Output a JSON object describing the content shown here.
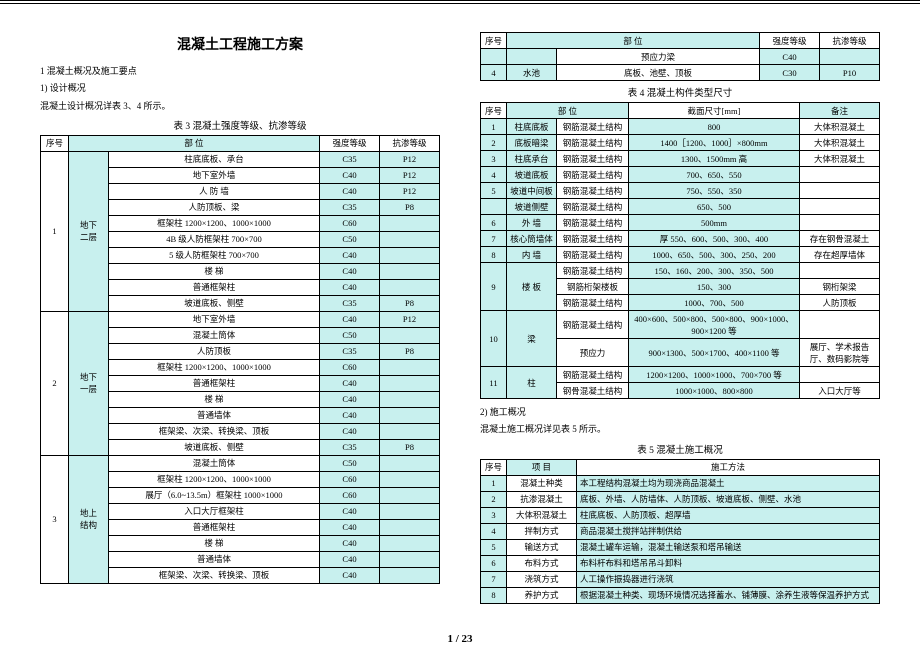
{
  "page_number": "1 / 23",
  "colors": {
    "highlight": "#c8f0ee",
    "border": "#000000",
    "bg": "#ffffff"
  },
  "title": "混凝土工程施工方案",
  "intro": {
    "l1": "1  混凝土概况及施工要点",
    "l2": "1)  设计概况",
    "l3": "混凝土设计概况详表 3、4 所示。"
  },
  "t3": {
    "caption": "表 3  混凝土强度等级、抗渗等级",
    "headers": {
      "idx": "序号",
      "part": "部  位",
      "strength": "强度等级",
      "perm": "抗渗等级"
    },
    "groups": [
      {
        "idx": "1",
        "label": "地下\n二层",
        "rows": [
          {
            "name": "柱底底板、承台",
            "s": "C35",
            "p": "P12"
          },
          {
            "name": "地下室外墙",
            "s": "C40",
            "p": "P12"
          },
          {
            "name": "人  防  墙",
            "s": "C40",
            "p": "P12"
          },
          {
            "name": "人防顶板、梁",
            "s": "C35",
            "p": "P8"
          },
          {
            "name": "框架柱 1200×1200、1000×1000",
            "s": "C60",
            "p": ""
          },
          {
            "name": "4B 级人防框架柱 700×700",
            "s": "C50",
            "p": ""
          },
          {
            "name": "5 级人防框架柱 700×700",
            "s": "C40",
            "p": ""
          },
          {
            "name": "楼    梯",
            "s": "C40",
            "p": ""
          },
          {
            "name": "普通框架柱",
            "s": "C40",
            "p": ""
          },
          {
            "name": "坡道底板、侧壁",
            "s": "C35",
            "p": "P8"
          }
        ]
      },
      {
        "idx": "2",
        "label": "地下\n一层",
        "rows": [
          {
            "name": "地下室外墙",
            "s": "C40",
            "p": "P12"
          },
          {
            "name": "混凝土筒体",
            "s": "C50",
            "p": ""
          },
          {
            "name": "人防顶板",
            "s": "C35",
            "p": "P8"
          },
          {
            "name": "框架柱 1200×1200、1000×1000",
            "s": "C60",
            "p": ""
          },
          {
            "name": "普通框架柱",
            "s": "C40",
            "p": ""
          },
          {
            "name": "楼    梯",
            "s": "C40",
            "p": ""
          },
          {
            "name": "普通墙体",
            "s": "C40",
            "p": ""
          },
          {
            "name": "框架梁、次梁、转换梁、顶板",
            "s": "C40",
            "p": ""
          },
          {
            "name": "坡道底板、侧壁",
            "s": "C35",
            "p": "P8"
          }
        ]
      },
      {
        "idx": "3",
        "label": "地上\n结构",
        "rows": [
          {
            "name": "混凝土筒体",
            "s": "C50",
            "p": ""
          },
          {
            "name": "框架柱 1200×1200、1000×1000",
            "s": "C60",
            "p": ""
          },
          {
            "name": "展厅（6.0~13.5m）框架柱 1000×1000",
            "s": "C60",
            "p": ""
          },
          {
            "name": "入口大厅框架柱",
            "s": "C40",
            "p": ""
          },
          {
            "name": "普通框架柱",
            "s": "C40",
            "p": ""
          },
          {
            "name": "楼    梯",
            "s": "C40",
            "p": ""
          },
          {
            "name": "普通墙体",
            "s": "C40",
            "p": ""
          },
          {
            "name": "框架梁、次梁、转换梁、顶板",
            "s": "C40",
            "p": ""
          }
        ]
      }
    ]
  },
  "t_top": {
    "headers": {
      "idx": "序号",
      "part": "部        位",
      "strength": "强度等级",
      "perm": "抗渗等级"
    },
    "rows": [
      {
        "idx": "",
        "a": "",
        "b": "预应力梁",
        "s": "C40",
        "p": ""
      },
      {
        "idx": "4",
        "a": "水池",
        "b": "底板、池壁、顶板",
        "s": "C30",
        "p": "P10"
      }
    ]
  },
  "t4": {
    "caption": "表 4  混凝土构件类型尺寸",
    "headers": {
      "idx": "序号",
      "part": "部  位",
      "struct": "",
      "dim": "截面尺寸[mm]",
      "note": "备注"
    },
    "rows": [
      {
        "idx": "1",
        "part": "柱底底板",
        "struct": "钢筋混凝土结构",
        "dim": "800",
        "note": "大体积混凝土"
      },
      {
        "idx": "2",
        "part": "底板暗梁",
        "struct": "钢筋混凝土结构",
        "dim": "1400［1200、1000］×800mm",
        "note": "大体积混凝土"
      },
      {
        "idx": "3",
        "part": "柱底承台",
        "struct": "钢筋混凝土结构",
        "dim": "1300、1500mm 高",
        "note": "大体积混凝土"
      },
      {
        "idx": "4",
        "part": "坡道底板",
        "struct": "钢筋混凝土结构",
        "dim": "700、650、550",
        "note": ""
      },
      {
        "idx": "5",
        "part": "坡道中间板",
        "struct": "钢筋混凝土结构",
        "dim": "750、550、350",
        "note": ""
      },
      {
        "idx": "",
        "part": "坡道侧壁",
        "struct": "钢筋混凝土结构",
        "dim": "650、500",
        "note": ""
      },
      {
        "idx": "6",
        "part": "外  墙",
        "struct": "钢筋混凝土结构",
        "dim": "500mm",
        "note": ""
      },
      {
        "idx": "7",
        "part": "核心筒墙体",
        "struct": "钢筋混凝土结构",
        "dim": "厚 550、600、500、300、400",
        "note": "存在钢骨混凝土"
      },
      {
        "idx": "8",
        "part": "内  墙",
        "struct": "钢筋混凝土结构",
        "dim": "1000、650、500、300、250、200",
        "note": "存在超厚墙体"
      }
    ],
    "row_floor": {
      "idx": "9",
      "part": "楼  板",
      "sub": [
        {
          "struct": "钢筋混凝土结构",
          "dim": "150、160、200、300、350、500",
          "note": ""
        },
        {
          "struct": "钢筋桁架楼板",
          "dim": "150、300",
          "note": "钢桁架梁"
        },
        {
          "struct": "钢筋混凝土结构",
          "dim": "1000、700、500",
          "note": "人防顶板"
        }
      ]
    },
    "row_beam": {
      "idx": "10",
      "part": "梁",
      "sub": [
        {
          "struct": "钢筋混凝土结构",
          "dim": "400×600、500×800、500×800、900×1000、900×1200 等",
          "note": ""
        },
        {
          "struct": "预应力",
          "dim": "900×1300、500×1700、400×1100 等",
          "note": "展厅、学术报告厅、数码影院等"
        }
      ]
    },
    "row_col": {
      "idx": "11",
      "part": "柱",
      "sub": [
        {
          "struct": "钢筋混凝土结构",
          "dim": "1200×1200、1000×1000、700×700 等",
          "note": ""
        },
        {
          "struct": "钢骨混凝土结构",
          "dim": "1000×1000、800×800",
          "note": "入口大厅等"
        }
      ]
    }
  },
  "mid": {
    "l1": "2)  施工概况",
    "l2": "混凝土施工概况详见表 5 所示。"
  },
  "t5": {
    "caption": "表 5  混凝土施工概况",
    "headers": {
      "idx": "序号",
      "item": "项    目",
      "method": "施工方法"
    },
    "rows": [
      {
        "idx": "1",
        "item": "混凝土种类",
        "method": "本工程结构混凝土均为现浇商品混凝土"
      },
      {
        "idx": "2",
        "item": "抗渗混凝土",
        "method": "底板、外墙、人防墙体、人防顶板、坡道底板、侧壁、水池"
      },
      {
        "idx": "3",
        "item": "大体积混凝土",
        "method": "柱底底板、人防顶板、超厚墙"
      },
      {
        "idx": "4",
        "item": "拌制方式",
        "method": "商品混凝土搅拌站拌制供给"
      },
      {
        "idx": "5",
        "item": "输送方式",
        "method": "混凝土罐车运输，混凝土输送泵和塔吊输送"
      },
      {
        "idx": "6",
        "item": "布料方式",
        "method": "布料杆布料和塔吊吊斗卸料"
      },
      {
        "idx": "7",
        "item": "浇筑方式",
        "method": "人工操作振捣器进行浇筑"
      },
      {
        "idx": "8",
        "item": "养护方式",
        "method": "根据混凝土种类、现场环境情况选择蓄水、铺薄膜、涂养生液等保温养护方式"
      }
    ]
  }
}
